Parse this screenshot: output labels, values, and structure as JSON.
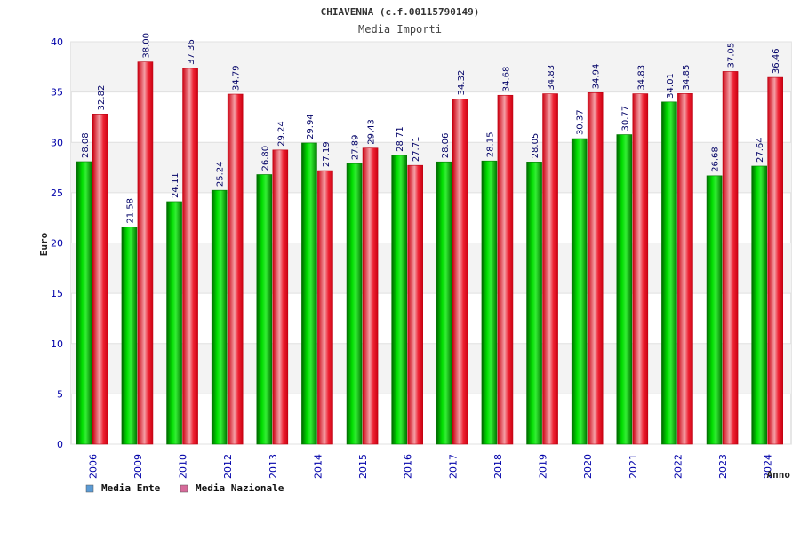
{
  "chart_data": {
    "type": "bar",
    "title": "CHIAVENNA (c.f.00115790149)",
    "subtitle": "Media Importi",
    "xlabel": "Anno",
    "ylabel": "Euro",
    "ylim": [
      0,
      40
    ],
    "yticks": [
      0,
      5,
      10,
      15,
      20,
      25,
      30,
      35,
      40
    ],
    "grid": true,
    "legend_position": "bottom-left",
    "categories": [
      "2006",
      "2009",
      "2010",
      "2012",
      "2013",
      "2014",
      "2015",
      "2016",
      "2017",
      "2018",
      "2019",
      "2020",
      "2021",
      "2022",
      "2023",
      "2024"
    ],
    "series": [
      {
        "name": "Media Ente",
        "color": "#00aa00",
        "legend_color": "#5b9bd5",
        "values": [
          28.08,
          21.58,
          24.11,
          25.24,
          26.8,
          29.94,
          27.89,
          28.71,
          28.06,
          28.15,
          28.05,
          30.37,
          30.77,
          34.01,
          26.68,
          27.64
        ],
        "labels": [
          "28.08",
          "21.58",
          "24.11",
          "25.24",
          "26.80",
          "29.94",
          "27.89",
          "28.71",
          "28.06",
          "28.15",
          "28.05",
          "30.37",
          "30.77",
          "34.01",
          "26.68",
          "27.64"
        ]
      },
      {
        "name": "Media Nazionale",
        "color": "#ee1122",
        "legend_color": "#d66a9a",
        "values": [
          32.82,
          38.0,
          37.36,
          34.79,
          29.24,
          27.19,
          29.43,
          27.71,
          34.32,
          34.68,
          34.83,
          34.94,
          34.83,
          34.85,
          37.05,
          36.46
        ],
        "labels": [
          "32.82",
          "38.00",
          "37.36",
          "34.79",
          "29.24",
          "27.19",
          "29.43",
          "27.71",
          "34.32",
          "34.68",
          "34.83",
          "34.94",
          "34.83",
          "34.85",
          "37.05",
          "36.46"
        ]
      }
    ]
  }
}
